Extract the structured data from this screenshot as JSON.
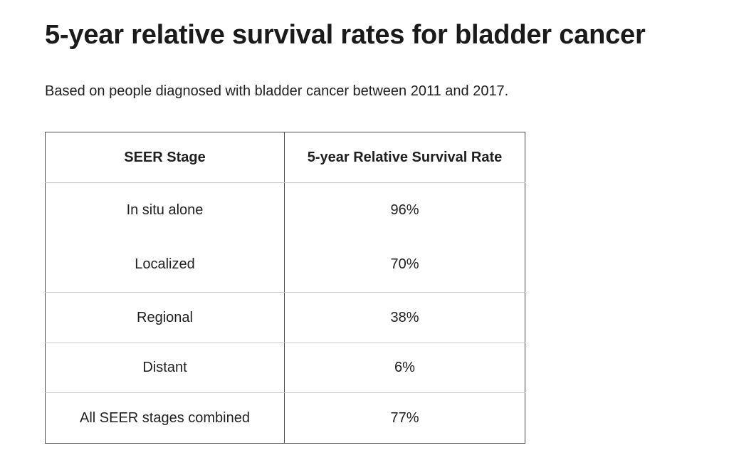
{
  "title": "5-year relative survival rates for bladder cancer",
  "subtitle": "Based on people diagnosed with bladder cancer between 2011 and 2017.",
  "table": {
    "headers": [
      "SEER Stage",
      "5-year Relative Survival Rate"
    ],
    "rows": [
      [
        "In situ alone",
        "96%"
      ],
      [
        "Localized",
        "70%"
      ],
      [
        "Regional",
        "38%"
      ],
      [
        "Distant",
        "6%"
      ],
      [
        "All SEER stages combined",
        "77%"
      ]
    ]
  }
}
